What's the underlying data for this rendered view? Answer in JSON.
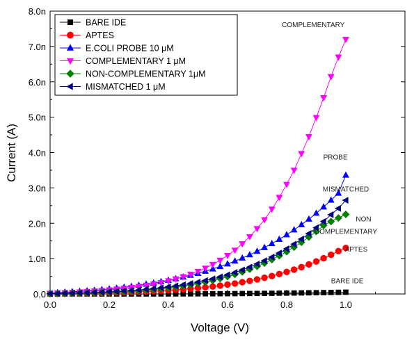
{
  "chart_data": {
    "type": "scatter",
    "title": "",
    "xlabel": "Voltage (V)",
    "ylabel": "Current (A)",
    "xlim": [
      0.0,
      1.2
    ],
    "ylim": [
      0.0,
      8.0
    ],
    "xticks": [
      "0.0",
      "0.2",
      "0.4",
      "0.6",
      "0.8",
      "1.0"
    ],
    "yticks": [
      "0.0",
      "1.0n",
      "2.0n",
      "3.0n",
      "4.0n",
      "5.0n",
      "6.0n",
      "7.0n",
      "8.0n"
    ],
    "grid": false,
    "legend_position": "top-left",
    "y_unit_note": "nA",
    "series": [
      {
        "name": "BARE IDE",
        "marker": "square",
        "color": "#000000",
        "x": [
          0.0,
          0.025,
          0.05,
          0.075,
          0.1,
          0.125,
          0.15,
          0.175,
          0.2,
          0.225,
          0.25,
          0.275,
          0.3,
          0.325,
          0.35,
          0.375,
          0.4,
          0.425,
          0.45,
          0.475,
          0.5,
          0.525,
          0.55,
          0.575,
          0.6,
          0.625,
          0.65,
          0.675,
          0.7,
          0.725,
          0.75,
          0.775,
          0.8,
          0.825,
          0.85,
          0.875,
          0.9,
          0.925,
          0.95,
          0.975,
          1.0
        ],
        "y": [
          0,
          0,
          0,
          0,
          0,
          0,
          0,
          0,
          0,
          0,
          0,
          0,
          0,
          0,
          0,
          0.001,
          0.001,
          0.002,
          0.002,
          0.003,
          0.004,
          0.005,
          0.006,
          0.007,
          0.008,
          0.01,
          0.011,
          0.013,
          0.015,
          0.017,
          0.019,
          0.022,
          0.024,
          0.027,
          0.03,
          0.033,
          0.036,
          0.039,
          0.043,
          0.047,
          0.05
        ]
      },
      {
        "name": "APTES",
        "marker": "circle",
        "color": "#ff0000",
        "x": [
          0.0,
          0.025,
          0.05,
          0.075,
          0.1,
          0.125,
          0.15,
          0.175,
          0.2,
          0.225,
          0.25,
          0.275,
          0.3,
          0.325,
          0.35,
          0.375,
          0.4,
          0.425,
          0.45,
          0.475,
          0.5,
          0.525,
          0.55,
          0.575,
          0.6,
          0.625,
          0.65,
          0.675,
          0.7,
          0.725,
          0.75,
          0.775,
          0.8,
          0.825,
          0.85,
          0.875,
          0.9,
          0.925,
          0.95,
          0.975,
          1.0
        ],
        "y": [
          0.004,
          0.007,
          0.01,
          0.013,
          0.016,
          0.02,
          0.024,
          0.028,
          0.033,
          0.039,
          0.045,
          0.052,
          0.06,
          0.069,
          0.079,
          0.09,
          0.102,
          0.116,
          0.131,
          0.148,
          0.167,
          0.188,
          0.211,
          0.237,
          0.266,
          0.297,
          0.332,
          0.37,
          0.412,
          0.458,
          0.508,
          0.563,
          0.623,
          0.688,
          0.759,
          0.836,
          0.92,
          1.01,
          1.108,
          1.213,
          1.3
        ]
      },
      {
        "name": "E.COLI PROBE 10 μM",
        "marker": "triangle-up",
        "color": "#0000ff",
        "x": [
          0.0,
          0.025,
          0.05,
          0.075,
          0.1,
          0.125,
          0.15,
          0.175,
          0.2,
          0.225,
          0.25,
          0.275,
          0.3,
          0.325,
          0.35,
          0.375,
          0.4,
          0.425,
          0.45,
          0.475,
          0.5,
          0.525,
          0.55,
          0.575,
          0.6,
          0.625,
          0.65,
          0.675,
          0.7,
          0.725,
          0.75,
          0.775,
          0.8,
          0.825,
          0.85,
          0.875,
          0.9,
          0.925,
          0.95,
          0.975,
          1.0
        ],
        "y": [
          0.03,
          0.04,
          0.05,
          0.062,
          0.075,
          0.09,
          0.106,
          0.124,
          0.144,
          0.165,
          0.189,
          0.215,
          0.244,
          0.275,
          0.309,
          0.346,
          0.386,
          0.43,
          0.477,
          0.528,
          0.583,
          0.643,
          0.707,
          0.776,
          0.85,
          0.93,
          1.016,
          1.108,
          1.206,
          1.312,
          1.425,
          1.546,
          1.675,
          1.813,
          1.96,
          2.117,
          2.284,
          2.462,
          2.652,
          2.85,
          3.36
        ]
      },
      {
        "name": "COMPLEMENTARY 1 μM",
        "marker": "triangle-down",
        "color": "#ff00ff",
        "x": [
          0.0,
          0.025,
          0.05,
          0.075,
          0.1,
          0.125,
          0.15,
          0.175,
          0.2,
          0.225,
          0.25,
          0.275,
          0.3,
          0.325,
          0.35,
          0.375,
          0.4,
          0.425,
          0.45,
          0.475,
          0.5,
          0.525,
          0.55,
          0.575,
          0.6,
          0.625,
          0.65,
          0.675,
          0.7,
          0.725,
          0.75,
          0.775,
          0.8,
          0.825,
          0.85,
          0.875,
          0.9,
          0.925,
          0.95,
          0.975,
          1.0
        ],
        "y": [
          0.02,
          0.028,
          0.037,
          0.047,
          0.058,
          0.071,
          0.085,
          0.1,
          0.117,
          0.137,
          0.159,
          0.184,
          0.212,
          0.244,
          0.281,
          0.323,
          0.371,
          0.425,
          0.488,
          0.558,
          0.64,
          0.73,
          0.835,
          0.953,
          1.09,
          1.24,
          1.42,
          1.62,
          1.85,
          2.1,
          2.4,
          2.73,
          3.1,
          3.5,
          3.97,
          4.45,
          4.99,
          5.55,
          6.15,
          6.7,
          7.2
        ]
      },
      {
        "name": "NON-COMPLEMENTARY 1μM",
        "marker": "diamond",
        "color": "#008000",
        "x": [
          0.0,
          0.025,
          0.05,
          0.075,
          0.1,
          0.125,
          0.15,
          0.175,
          0.2,
          0.225,
          0.25,
          0.275,
          0.3,
          0.325,
          0.35,
          0.375,
          0.4,
          0.425,
          0.45,
          0.475,
          0.5,
          0.525,
          0.55,
          0.575,
          0.6,
          0.625,
          0.65,
          0.675,
          0.7,
          0.725,
          0.75,
          0.775,
          0.8,
          0.825,
          0.85,
          0.875,
          0.9,
          0.925,
          0.95,
          0.975,
          1.0
        ],
        "y": [
          0.006,
          0.009,
          0.013,
          0.017,
          0.022,
          0.027,
          0.033,
          0.04,
          0.048,
          0.057,
          0.068,
          0.08,
          0.094,
          0.11,
          0.128,
          0.148,
          0.171,
          0.197,
          0.226,
          0.259,
          0.296,
          0.337,
          0.383,
          0.434,
          0.491,
          0.554,
          0.623,
          0.699,
          0.782,
          0.873,
          0.972,
          1.08,
          1.197,
          1.324,
          1.461,
          1.609,
          1.768,
          1.938,
          2.05,
          2.15,
          2.25
        ]
      },
      {
        "name": "MISMATCHED 1 μM",
        "marker": "triangle-left",
        "color": "#000080",
        "x": [
          0.0,
          0.025,
          0.05,
          0.075,
          0.1,
          0.125,
          0.15,
          0.175,
          0.2,
          0.225,
          0.25,
          0.275,
          0.3,
          0.325,
          0.35,
          0.375,
          0.4,
          0.425,
          0.45,
          0.475,
          0.5,
          0.525,
          0.55,
          0.575,
          0.6,
          0.625,
          0.65,
          0.675,
          0.7,
          0.725,
          0.75,
          0.775,
          0.8,
          0.825,
          0.85,
          0.875,
          0.9,
          0.925,
          0.95,
          0.975,
          1.0
        ],
        "y": [
          0.008,
          0.012,
          0.016,
          0.021,
          0.027,
          0.033,
          0.041,
          0.049,
          0.059,
          0.07,
          0.083,
          0.097,
          0.113,
          0.131,
          0.151,
          0.174,
          0.2,
          0.228,
          0.26,
          0.296,
          0.336,
          0.38,
          0.429,
          0.483,
          0.543,
          0.609,
          0.681,
          0.76,
          0.847,
          0.941,
          1.044,
          1.156,
          1.278,
          1.41,
          1.553,
          1.707,
          1.873,
          2.051,
          2.242,
          2.42,
          2.65
        ]
      }
    ],
    "annotations": [
      {
        "text": "COMPLEMENTARY",
        "x": 0.89,
        "y": 7.55
      },
      {
        "text": "PROBE",
        "x": 0.965,
        "y": 3.8
      },
      {
        "text": "MISMATCHED",
        "x": 1.0,
        "y": 2.9
      },
      {
        "text": "NON",
        "x": 1.06,
        "y": 2.05
      },
      {
        "text": "COMPLEMENTARY",
        "x": 1.0,
        "y": 1.7
      },
      {
        "text": "APTES",
        "x": 1.035,
        "y": 1.2
      },
      {
        "text": "BARE IDE",
        "x": 1.005,
        "y": 0.3
      }
    ]
  }
}
